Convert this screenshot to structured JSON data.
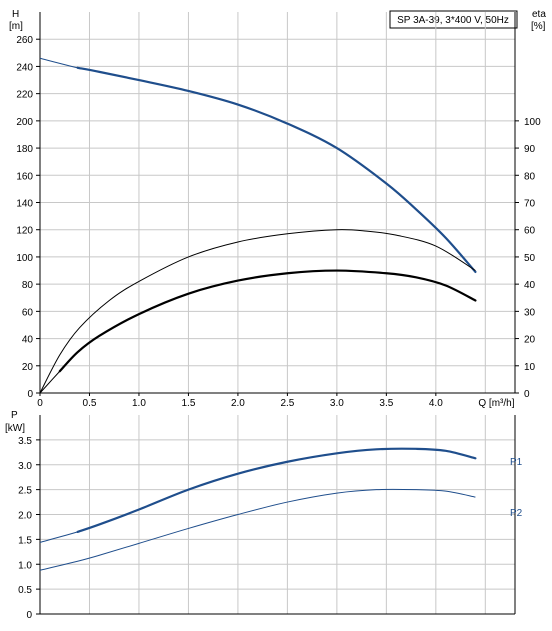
{
  "chart_data": [
    {
      "type": "line",
      "title": "SP 3A-39, 3*400 V, 50Hz",
      "xlabel": "Q [m³/h]",
      "ylabel_left": "H\n[m]",
      "ylabel_right": "eta\n[%]",
      "xlim": [
        0,
        4.8
      ],
      "ylim_left": [
        0,
        280
      ],
      "ylim_right": [
        0,
        140
      ],
      "x_ticks": [
        "0",
        "0.5",
        "1.0",
        "1.5",
        "2.0",
        "2.5",
        "3.0",
        "3.5",
        "4.0",
        "Q [m³/h]"
      ],
      "y_ticks_left": [
        "0",
        "20",
        "40",
        "60",
        "80",
        "100",
        "120",
        "140",
        "160",
        "180",
        "200",
        "220",
        "240",
        "260"
      ],
      "y_ticks_right": [
        "0",
        "10",
        "20",
        "30",
        "40",
        "50",
        "60",
        "70",
        "80",
        "90",
        "100"
      ],
      "grid": true,
      "series": [
        {
          "role": "head",
          "axis": "left",
          "color": "#1f4e8c",
          "style": "thin-then-thick",
          "x": [
            0,
            0.38,
            0.6,
            1.0,
            1.5,
            2.0,
            2.5,
            3.0,
            3.5,
            3.8,
            4.1,
            4.4
          ],
          "y": [
            246,
            239,
            236,
            230,
            222,
            212,
            198,
            180,
            154,
            135,
            114,
            89
          ]
        },
        {
          "role": "efficiency-hydraulic",
          "axis": "right",
          "color": "#000000",
          "style": "thin",
          "x": [
            0,
            0.2,
            0.4,
            0.7,
            1.0,
            1.5,
            2.0,
            2.5,
            3.0,
            3.3,
            3.6,
            4.0,
            4.4
          ],
          "y": [
            0,
            14,
            24,
            34,
            41,
            50,
            55.5,
            58.5,
            60,
            59.5,
            58,
            54,
            45
          ]
        },
        {
          "role": "efficiency-total",
          "axis": "right",
          "color": "#000000",
          "style": "thin-then-thick",
          "x": [
            0,
            0.2,
            0.38,
            0.6,
            1.0,
            1.5,
            2.0,
            2.5,
            3.0,
            3.5,
            3.8,
            4.1,
            4.4
          ],
          "y": [
            0,
            8,
            15,
            21,
            29,
            36.5,
            41.3,
            44,
            45,
            44,
            42.5,
            39.5,
            34
          ]
        }
      ]
    },
    {
      "type": "line",
      "ylabel": "P\n[kW]",
      "xlim": [
        0,
        4.8
      ],
      "ylim": [
        0,
        4
      ],
      "y_ticks": [
        "0",
        "0.5",
        "1.0",
        "1.5",
        "2.0",
        "2.5",
        "3.0",
        "3.5"
      ],
      "grid": true,
      "series": [
        {
          "name": "P1",
          "color": "#1f4e8c",
          "style": "thin-then-thick",
          "x": [
            0,
            0.38,
            0.6,
            1.0,
            1.5,
            2.0,
            2.5,
            3.0,
            3.4,
            3.8,
            4.1,
            4.4
          ],
          "y": [
            1.44,
            1.65,
            1.8,
            2.1,
            2.5,
            2.82,
            3.06,
            3.23,
            3.31,
            3.32,
            3.28,
            3.13
          ]
        },
        {
          "name": "P2",
          "color": "#1f4e8c",
          "style": "thin",
          "x": [
            0,
            0.38,
            0.6,
            1.0,
            1.5,
            2.0,
            2.5,
            3.0,
            3.4,
            3.8,
            4.1,
            4.4
          ],
          "y": [
            0.88,
            1.06,
            1.18,
            1.42,
            1.72,
            2.0,
            2.25,
            2.43,
            2.5,
            2.5,
            2.47,
            2.35
          ]
        }
      ]
    }
  ]
}
